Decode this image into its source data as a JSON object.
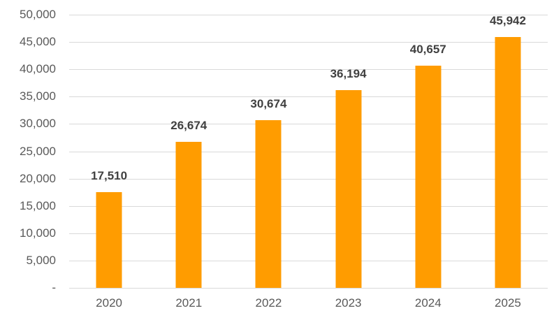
{
  "chart_data": {
    "type": "bar",
    "title": "",
    "xlabel": "",
    "ylabel": "",
    "categories": [
      "2020",
      "2021",
      "2022",
      "2023",
      "2024",
      "2025"
    ],
    "values": [
      17510,
      26674,
      30674,
      36194,
      40657,
      45942
    ],
    "data_labels": [
      "17,510",
      "26,674",
      "30,674",
      "36,194",
      "40,657",
      "45,942"
    ],
    "ylim": [
      0,
      50000
    ],
    "ytick_step": 5000,
    "ytick_labels_top_to_bottom": [
      "50,000",
      "45,000",
      "40,000",
      "35,000",
      "30,000",
      "25,000",
      "20,000",
      "15,000",
      "10,000",
      "5,000",
      "-"
    ],
    "grid": true,
    "legend": false,
    "colors": {
      "bar": "#FF9C00",
      "data_label": "#404040",
      "axis_label": "#595959",
      "gridline": "#D9D9D9",
      "background": "#FFFFFF"
    }
  }
}
